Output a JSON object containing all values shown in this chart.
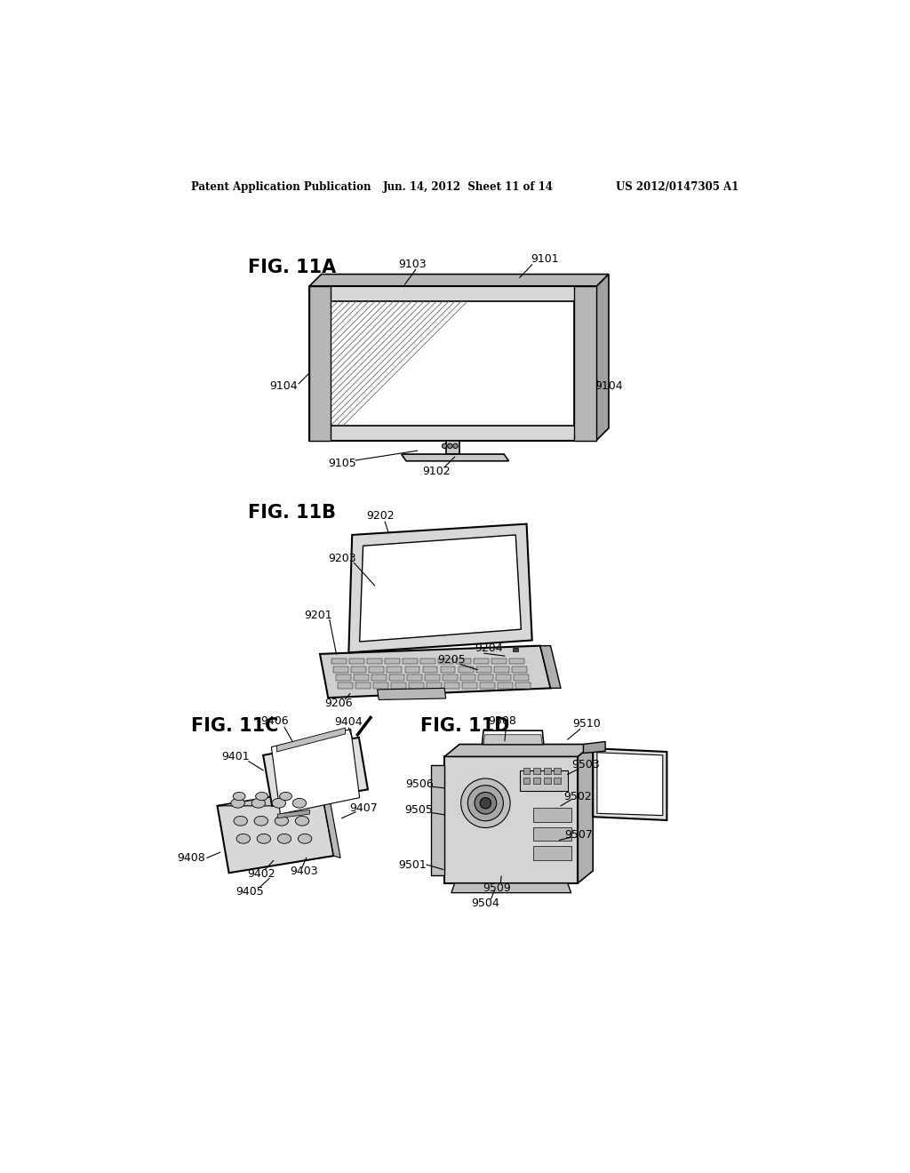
{
  "header_left": "Patent Application Publication",
  "header_mid": "Jun. 14, 2012  Sheet 11 of 14",
  "header_right": "US 2012/0147305 A1",
  "background": "#ffffff"
}
